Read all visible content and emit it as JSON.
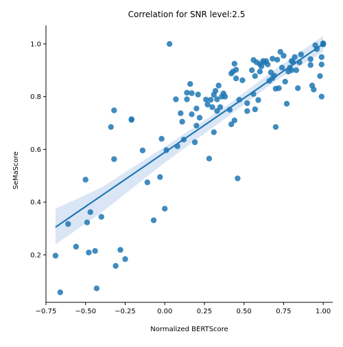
{
  "chart_data": {
    "type": "scatter",
    "title": "Correlation for SNR level:2.5",
    "xlabel": "Normalized BERTScore",
    "ylabel": "SeMaScore",
    "xlim": [
      -0.75,
      1.06
    ],
    "ylim": [
      0.02,
      1.07
    ],
    "xticks": [
      -0.75,
      -0.5,
      -0.25,
      0.0,
      0.25,
      0.5,
      0.75,
      1.0
    ],
    "xtick_labels": [
      "−0.75",
      "−0.50",
      "−0.25",
      "0.00",
      "0.25",
      "0.50",
      "0.75",
      "1.00"
    ],
    "yticks": [
      0.2,
      0.4,
      0.6,
      0.8,
      1.0
    ],
    "ytick_labels": [
      "0.2",
      "0.4",
      "0.6",
      "0.8",
      "1.0"
    ],
    "grid": false,
    "colors": {
      "points": "#1f77b4",
      "line": "#1f77b4",
      "band": "#aec7e8"
    },
    "regression": {
      "x": [
        -0.69,
        1.0
      ],
      "y": [
        0.305,
        1.0
      ]
    },
    "confidence_band": {
      "x": [
        -0.69,
        -0.4,
        0.0,
        0.4,
        0.7,
        1.0
      ],
      "upper": [
        0.375,
        0.455,
        0.61,
        0.77,
        0.905,
        1.03
      ],
      "lower": [
        0.24,
        0.36,
        0.55,
        0.725,
        0.86,
        0.97
      ]
    },
    "points": [
      [
        -0.69,
        0.197
      ],
      [
        -0.66,
        0.058
      ],
      [
        -0.61,
        0.317
      ],
      [
        -0.56,
        0.231
      ],
      [
        -0.5,
        0.485
      ],
      [
        -0.49,
        0.323
      ],
      [
        -0.48,
        0.209
      ],
      [
        -0.47,
        0.362
      ],
      [
        -0.44,
        0.215
      ],
      [
        -0.43,
        0.073
      ],
      [
        -0.4,
        0.344
      ],
      [
        -0.34,
        0.685
      ],
      [
        -0.32,
        0.748
      ],
      [
        -0.32,
        0.563
      ],
      [
        -0.31,
        0.158
      ],
      [
        -0.28,
        0.219
      ],
      [
        -0.25,
        0.184
      ],
      [
        -0.21,
        0.714
      ],
      [
        -0.21,
        0.712
      ],
      [
        -0.14,
        0.596
      ],
      [
        -0.11,
        0.475
      ],
      [
        -0.07,
        0.331
      ],
      [
        -0.03,
        0.495
      ],
      [
        -0.02,
        0.64
      ],
      [
        0.0,
        0.375
      ],
      [
        0.01,
        0.597
      ],
      [
        0.03,
        1.0
      ],
      [
        0.07,
        0.79
      ],
      [
        0.08,
        0.612
      ],
      [
        0.1,
        0.737
      ],
      [
        0.11,
        0.705
      ],
      [
        0.12,
        0.637
      ],
      [
        0.14,
        0.815
      ],
      [
        0.14,
        0.79
      ],
      [
        0.16,
        0.848
      ],
      [
        0.17,
        0.813
      ],
      [
        0.17,
        0.733
      ],
      [
        0.19,
        0.627
      ],
      [
        0.2,
        0.69
      ],
      [
        0.2,
        0.755
      ],
      [
        0.21,
        0.808
      ],
      [
        0.22,
        0.72
      ],
      [
        0.26,
        0.789
      ],
      [
        0.27,
        0.77
      ],
      [
        0.28,
        0.565
      ],
      [
        0.29,
        0.788
      ],
      [
        0.3,
        0.76
      ],
      [
        0.31,
        0.807
      ],
      [
        0.31,
        0.665
      ],
      [
        0.32,
        0.822
      ],
      [
        0.33,
        0.79
      ],
      [
        0.33,
        0.746
      ],
      [
        0.34,
        0.842
      ],
      [
        0.35,
        0.76
      ],
      [
        0.36,
        0.8
      ],
      [
        0.37,
        0.812
      ],
      [
        0.38,
        0.8
      ],
      [
        0.41,
        0.75
      ],
      [
        0.42,
        0.888
      ],
      [
        0.42,
        0.695
      ],
      [
        0.43,
        0.895
      ],
      [
        0.44,
        0.925
      ],
      [
        0.44,
        0.71
      ],
      [
        0.45,
        0.902
      ],
      [
        0.45,
        0.869
      ],
      [
        0.46,
        0.49
      ],
      [
        0.47,
        0.788
      ],
      [
        0.49,
        0.862
      ],
      [
        0.52,
        0.775
      ],
      [
        0.52,
        0.745
      ],
      [
        0.55,
        0.9
      ],
      [
        0.56,
        0.939
      ],
      [
        0.56,
        0.81
      ],
      [
        0.57,
        0.878
      ],
      [
        0.57,
        0.752
      ],
      [
        0.58,
        0.93
      ],
      [
        0.59,
        0.787
      ],
      [
        0.6,
        0.923
      ],
      [
        0.6,
        0.895
      ],
      [
        0.61,
        0.915
      ],
      [
        0.62,
        0.935
      ],
      [
        0.63,
        0.93
      ],
      [
        0.64,
        0.935
      ],
      [
        0.65,
        0.922
      ],
      [
        0.66,
        0.86
      ],
      [
        0.67,
        0.892
      ],
      [
        0.68,
        0.944
      ],
      [
        0.68,
        0.87
      ],
      [
        0.69,
        0.88
      ],
      [
        0.7,
        0.685
      ],
      [
        0.7,
        0.83
      ],
      [
        0.71,
        0.94
      ],
      [
        0.72,
        0.832
      ],
      [
        0.73,
        0.97
      ],
      [
        0.74,
        0.91
      ],
      [
        0.75,
        0.955
      ],
      [
        0.76,
        0.857
      ],
      [
        0.77,
        0.773
      ],
      [
        0.78,
        0.895
      ],
      [
        0.79,
        0.91
      ],
      [
        0.8,
        0.9
      ],
      [
        0.8,
        0.935
      ],
      [
        0.81,
        0.93
      ],
      [
        0.82,
        0.95
      ],
      [
        0.83,
        0.9
      ],
      [
        0.84,
        0.832
      ],
      [
        0.85,
        0.93
      ],
      [
        0.86,
        0.96
      ],
      [
        0.92,
        0.92
      ],
      [
        0.92,
        0.942
      ],
      [
        0.93,
        0.842
      ],
      [
        0.94,
        0.827
      ],
      [
        0.95,
        0.995
      ],
      [
        0.96,
        0.98
      ],
      [
        0.98,
        0.878
      ],
      [
        0.99,
        0.8
      ],
      [
        0.99,
        0.922
      ],
      [
        0.99,
        0.95
      ],
      [
        1.0,
        0.998
      ],
      [
        1.0,
        1.0
      ],
      [
        1.0,
        1.002
      ]
    ]
  }
}
